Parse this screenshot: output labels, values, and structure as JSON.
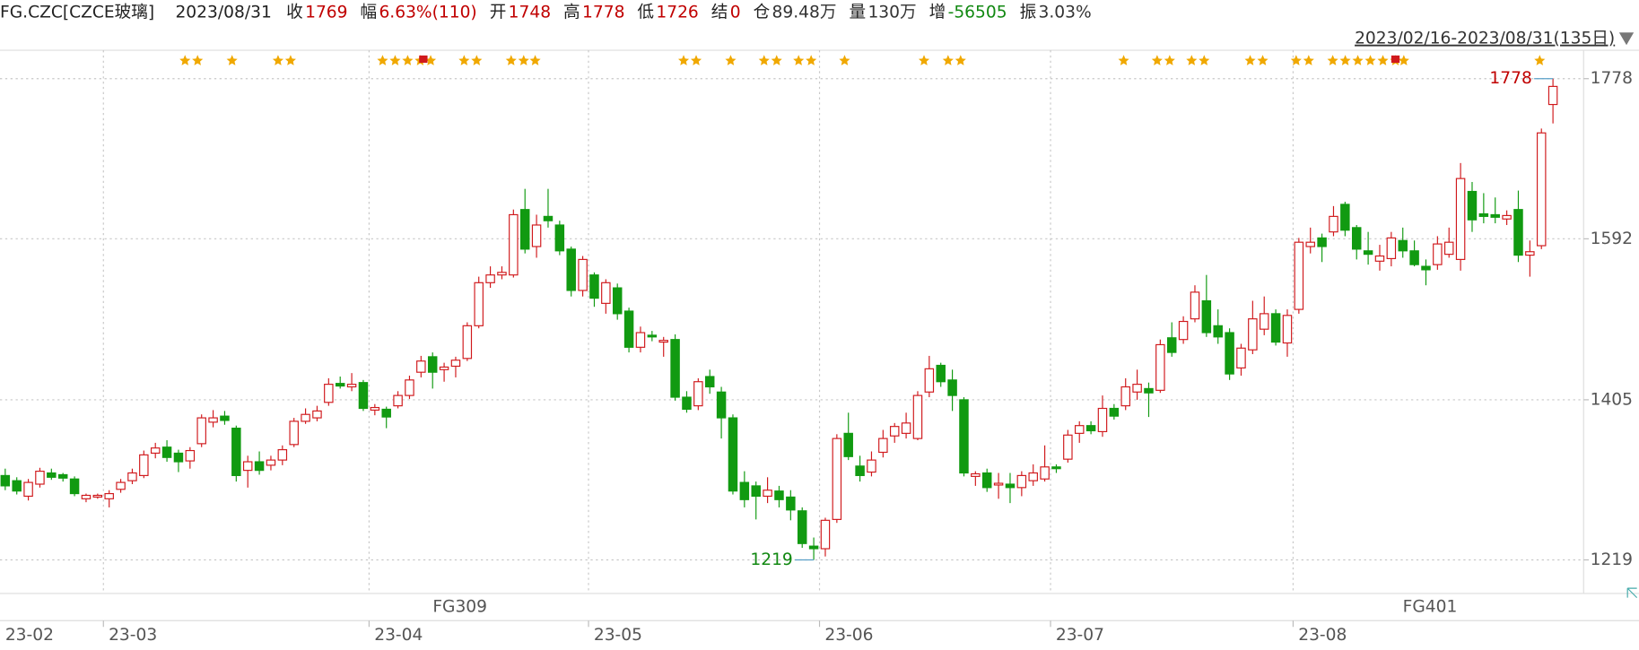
{
  "header": {
    "symbol": "FG.CZC[CZCE玻璃]",
    "date": "2023/08/31",
    "fields": [
      {
        "label": "收",
        "value": "1769",
        "color": "#c00000"
      },
      {
        "label": "幅",
        "value": "6.63%(110)",
        "color": "#c00000"
      },
      {
        "label": "开",
        "value": "1748",
        "color": "#c00000"
      },
      {
        "label": "高",
        "value": "1778",
        "color": "#c00000"
      },
      {
        "label": "低",
        "value": "1726",
        "color": "#c00000"
      },
      {
        "label": "结",
        "value": "0",
        "color": "#c00000"
      },
      {
        "label": "仓",
        "value": "89.48万",
        "color": "#333333"
      },
      {
        "label": "量",
        "value": "130万",
        "color": "#333333"
      },
      {
        "label": "增",
        "value": "-56505",
        "color": "#118811"
      },
      {
        "label": "振",
        "value": "3.03%",
        "color": "#333333"
      }
    ]
  },
  "chart_data": {
    "type": "candlestick",
    "range_label": "2023/02/16-2023/08/31(135日)",
    "contracts": [
      "FG309",
      "FG401"
    ],
    "up_color": "#d0191c",
    "down_color": "#119a11",
    "grid": true,
    "ylim": [
      1180,
      1811
    ],
    "yticks": [
      1219,
      1405,
      1592,
      1778
    ],
    "categories": [
      "23-02",
      null,
      null,
      null,
      null,
      null,
      null,
      null,
      null,
      "23-03",
      null,
      null,
      null,
      null,
      null,
      null,
      null,
      null,
      null,
      null,
      null,
      null,
      null,
      null,
      null,
      null,
      null,
      null,
      null,
      null,
      null,
      null,
      "23-04",
      null,
      null,
      null,
      null,
      null,
      null,
      null,
      null,
      null,
      null,
      null,
      null,
      null,
      null,
      null,
      null,
      null,
      null,
      "23-05",
      null,
      null,
      null,
      null,
      null,
      null,
      null,
      null,
      null,
      null,
      null,
      null,
      null,
      null,
      null,
      null,
      null,
      null,
      null,
      "23-06",
      null,
      null,
      null,
      null,
      null,
      null,
      null,
      null,
      null,
      null,
      null,
      null,
      null,
      null,
      null,
      null,
      null,
      null,
      null,
      "23-07",
      null,
      null,
      null,
      null,
      null,
      null,
      null,
      null,
      null,
      null,
      null,
      null,
      null,
      null,
      null,
      null,
      null,
      null,
      null,
      null,
      "23-08",
      null,
      null,
      null,
      null,
      null,
      null,
      null,
      null,
      null,
      null,
      null,
      null,
      null,
      null,
      null,
      null,
      null,
      null,
      null,
      null,
      null,
      null
    ],
    "open": [
      1317,
      1311,
      1293,
      1307,
      1320,
      1318,
      1313,
      1290,
      1292,
      1290,
      1301,
      1311,
      1317,
      1343,
      1350,
      1343,
      1334,
      1354,
      1379,
      1386,
      1372,
      1323,
      1333,
      1329,
      1335,
      1353,
      1380,
      1384,
      1402,
      1424,
      1420,
      1425,
      1393,
      1394,
      1398,
      1410,
      1437,
      1455,
      1440,
      1444,
      1453,
      1491,
      1541,
      1550,
      1550,
      1626,
      1583,
      1618,
      1608,
      1580,
      1532,
      1550,
      1517,
      1535,
      1508,
      1466,
      1480,
      1472,
      1475,
      1408,
      1398,
      1432,
      1414,
      1384,
      1309,
      1305,
      1293,
      1299,
      1292,
      1276,
      1235,
      1232,
      1266,
      1366,
      1328,
      1321,
      1344,
      1363,
      1366,
      1360,
      1414,
      1445,
      1428,
      1405,
      1316,
      1320,
      1306,
      1307,
      1303,
      1311,
      1313,
      1327,
      1336,
      1366,
      1375,
      1368,
      1395,
      1398,
      1414,
      1418,
      1416,
      1477,
      1475,
      1499,
      1520,
      1491,
      1483,
      1442,
      1463,
      1487,
      1505,
      1471,
      1510,
      1583,
      1593,
      1600,
      1632,
      1605,
      1578,
      1566,
      1569,
      1590,
      1578,
      1560,
      1562,
      1574,
      1568,
      1647,
      1621,
      1620,
      1615,
      1626,
      1573,
      1584,
      1748
    ],
    "high": [
      1325,
      1315,
      1313,
      1326,
      1325,
      1320,
      1316,
      1296,
      1296,
      1300,
      1313,
      1325,
      1346,
      1355,
      1358,
      1347,
      1350,
      1388,
      1393,
      1392,
      1375,
      1340,
      1345,
      1340,
      1352,
      1384,
      1395,
      1398,
      1430,
      1432,
      1436,
      1428,
      1400,
      1397,
      1415,
      1433,
      1456,
      1460,
      1448,
      1455,
      1495,
      1548,
      1560,
      1560,
      1626,
      1650,
      1620,
      1650,
      1613,
      1583,
      1572,
      1553,
      1545,
      1540,
      1512,
      1490,
      1485,
      1478,
      1481,
      1415,
      1430,
      1440,
      1420,
      1388,
      1322,
      1310,
      1315,
      1305,
      1300,
      1280,
      1245,
      1268,
      1365,
      1390,
      1340,
      1345,
      1370,
      1378,
      1390,
      1415,
      1456,
      1448,
      1440,
      1408,
      1322,
      1325,
      1320,
      1320,
      1322,
      1330,
      1352,
      1330,
      1370,
      1380,
      1380,
      1410,
      1400,
      1430,
      1440,
      1425,
      1475,
      1495,
      1502,
      1538,
      1550,
      1510,
      1488,
      1470,
      1520,
      1525,
      1510,
      1510,
      1593,
      1605,
      1598,
      1630,
      1635,
      1608,
      1600,
      1585,
      1600,
      1605,
      1590,
      1568,
      1595,
      1605,
      1680,
      1658,
      1645,
      1640,
      1625,
      1648,
      1590,
      1720,
      1778
    ],
    "low": [
      1300,
      1295,
      1288,
      1303,
      1312,
      1310,
      1293,
      1286,
      1290,
      1280,
      1297,
      1307,
      1314,
      1337,
      1333,
      1321,
      1325,
      1350,
      1373,
      1376,
      1310,
      1303,
      1318,
      1323,
      1329,
      1350,
      1377,
      1380,
      1398,
      1418,
      1415,
      1392,
      1387,
      1372,
      1395,
      1406,
      1431,
      1418,
      1426,
      1431,
      1450,
      1488,
      1535,
      1545,
      1547,
      1575,
      1570,
      1605,
      1573,
      1525,
      1525,
      1513,
      1505,
      1498,
      1460,
      1460,
      1473,
      1455,
      1404,
      1390,
      1393,
      1412,
      1360,
      1295,
      1280,
      1266,
      1285,
      1280,
      1265,
      1233,
      1219,
      1223,
      1262,
      1335,
      1310,
      1316,
      1338,
      1355,
      1360,
      1358,
      1408,
      1420,
      1392,
      1316,
      1305,
      1298,
      1290,
      1285,
      1293,
      1305,
      1310,
      1320,
      1332,
      1355,
      1365,
      1362,
      1382,
      1393,
      1405,
      1385,
      1413,
      1455,
      1470,
      1495,
      1478,
      1470,
      1428,
      1433,
      1458,
      1480,
      1468,
      1455,
      1505,
      1575,
      1565,
      1595,
      1595,
      1568,
      1562,
      1555,
      1560,
      1570,
      1560,
      1538,
      1556,
      1570,
      1555,
      1600,
      1610,
      1610,
      1608,
      1565,
      1548,
      1580,
      1726
    ],
    "close": [
      1305,
      1299,
      1309,
      1322,
      1315,
      1314,
      1296,
      1294,
      1294,
      1296,
      1309,
      1320,
      1341,
      1349,
      1338,
      1333,
      1346,
      1384,
      1384,
      1381,
      1317,
      1333,
      1323,
      1335,
      1347,
      1380,
      1388,
      1392,
      1423,
      1421,
      1423,
      1395,
      1396,
      1385,
      1410,
      1428,
      1450,
      1437,
      1443,
      1451,
      1491,
      1541,
      1550,
      1553,
      1620,
      1580,
      1608,
      1613,
      1578,
      1532,
      1568,
      1523,
      1541,
      1505,
      1466,
      1483,
      1478,
      1474,
      1408,
      1394,
      1426,
      1420,
      1384,
      1299,
      1289,
      1293,
      1300,
      1289,
      1277,
      1238,
      1232,
      1265,
      1360,
      1339,
      1317,
      1335,
      1360,
      1374,
      1378,
      1410,
      1441,
      1426,
      1410,
      1320,
      1319,
      1303,
      1308,
      1303,
      1317,
      1320,
      1327,
      1325,
      1364,
      1375,
      1369,
      1395,
      1386,
      1420,
      1423,
      1413,
      1469,
      1460,
      1496,
      1530,
      1483,
      1478,
      1435,
      1465,
      1499,
      1505,
      1472,
      1503,
      1588,
      1588,
      1583,
      1618,
      1602,
      1580,
      1574,
      1572,
      1593,
      1578,
      1562,
      1556,
      1586,
      1588,
      1662,
      1614,
      1618,
      1617,
      1619,
      1573,
      1577,
      1715,
      1769
    ]
  }
}
